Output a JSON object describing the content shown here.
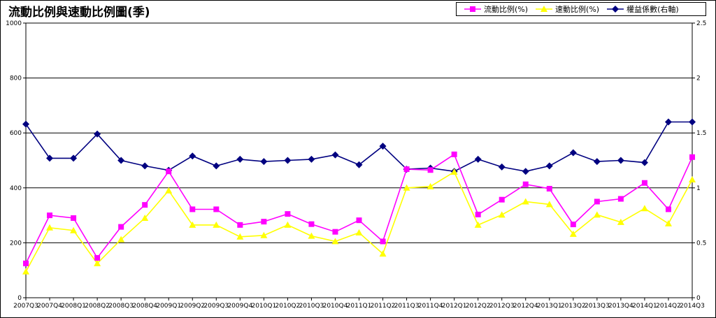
{
  "chart_data": {
    "type": "line",
    "title": "流動比例與速動比例圖(季)",
    "categories": [
      "2007Q3",
      "2007Q4",
      "2008Q1",
      "2008Q2",
      "2008Q3",
      "2008Q4",
      "2009Q1",
      "2009Q2",
      "2009Q3",
      "2009Q4",
      "2010Q1",
      "2010Q2",
      "2010Q3",
      "2010Q4",
      "2011Q1",
      "2011Q2",
      "2011Q3",
      "2011Q4",
      "2012Q1",
      "2012Q2",
      "2012Q3",
      "2012Q4",
      "2013Q1",
      "2013Q2",
      "2013Q3",
      "2013Q4",
      "2014Q1",
      "2014Q2",
      "2014Q3"
    ],
    "y_left": {
      "min": 0,
      "max": 1000,
      "ticks": [
        "0",
        "200",
        "400",
        "600",
        "800",
        "1000"
      ]
    },
    "y_right": {
      "min": 0,
      "max": 2.5,
      "ticks": [
        "0",
        "0.5",
        "1",
        "1.5",
        "2",
        "2.5"
      ]
    },
    "grid": true,
    "legend_position": "top-right",
    "series": [
      {
        "name": "流動比例(%)",
        "axis": "left",
        "color": "#ff00ff",
        "marker": "square",
        "values": [
          125,
          300,
          290,
          145,
          258,
          338,
          460,
          322,
          322,
          265,
          277,
          305,
          268,
          240,
          282,
          205,
          468,
          465,
          522,
          303,
          357,
          413,
          397,
          267,
          350,
          360,
          418,
          322,
          512
        ]
      },
      {
        "name": "速動比例(%)",
        "axis": "left",
        "color": "#ffff00",
        "marker": "triangle",
        "values": [
          95,
          255,
          245,
          125,
          212,
          290,
          390,
          265,
          265,
          222,
          227,
          265,
          225,
          205,
          237,
          160,
          400,
          405,
          458,
          265,
          302,
          350,
          340,
          232,
          302,
          275,
          325,
          270,
          430
        ]
      },
      {
        "name": "權益係數(右軸)",
        "axis": "right",
        "color": "#000080",
        "marker": "diamond",
        "values": [
          1.58,
          1.27,
          1.27,
          1.49,
          1.25,
          1.2,
          1.16,
          1.29,
          1.2,
          1.26,
          1.24,
          1.25,
          1.26,
          1.3,
          1.21,
          1.38,
          1.17,
          1.18,
          1.15,
          1.26,
          1.19,
          1.15,
          1.2,
          1.32,
          1.24,
          1.25,
          1.23,
          1.6,
          1.6
        ]
      }
    ]
  }
}
